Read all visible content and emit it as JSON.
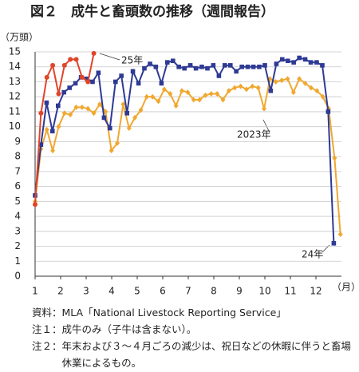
{
  "chart_data": {
    "type": "line",
    "title": "図２　成牛と畜頭数の推移（週間報告）",
    "y_label": "（万頭）",
    "x_label": "（月）",
    "xlim": [
      1,
      13
    ],
    "xticks": [
      1,
      2,
      3,
      4,
      5,
      6,
      7,
      8,
      9,
      10,
      11,
      12
    ],
    "ylim": [
      0,
      15
    ],
    "yticks": [
      0,
      1,
      2,
      3,
      4,
      5,
      6,
      7,
      8,
      9,
      10,
      11,
      12,
      13,
      14,
      15
    ],
    "grid": true,
    "series": [
      {
        "name": "2023年",
        "color": "#f0a830",
        "marker": "diamond",
        "x": [
          1.0,
          1.23,
          1.46,
          1.69,
          1.92,
          2.15,
          2.38,
          2.61,
          2.84,
          3.07,
          3.3,
          3.53,
          3.76,
          3.99,
          4.22,
          4.45,
          4.68,
          4.91,
          5.14,
          5.37,
          5.6,
          5.83,
          6.06,
          6.29,
          6.52,
          6.75,
          6.98,
          7.21,
          7.44,
          7.67,
          7.9,
          8.13,
          8.36,
          8.59,
          8.82,
          9.05,
          9.28,
          9.51,
          9.74,
          9.97,
          10.2,
          10.43,
          10.66,
          10.89,
          11.12,
          11.35,
          11.58,
          11.81,
          12.04,
          12.27,
          12.5,
          12.73,
          12.96
        ],
        "values": [
          5.0,
          8.5,
          9.8,
          8.4,
          10.0,
          10.9,
          10.8,
          11.3,
          11.3,
          11.2,
          10.9,
          11.5,
          11.0,
          8.4,
          8.9,
          11.5,
          9.9,
          10.6,
          11.1,
          12.0,
          12.0,
          11.7,
          12.5,
          12.2,
          11.4,
          12.4,
          12.3,
          11.8,
          11.8,
          12.1,
          12.2,
          12.2,
          11.8,
          12.4,
          12.6,
          12.7,
          12.5,
          12.7,
          12.6,
          11.2,
          13.2,
          13.0,
          13.1,
          13.2,
          12.3,
          13.2,
          12.9,
          12.6,
          12.4,
          12.0,
          11.2,
          7.9,
          2.8
        ]
      },
      {
        "name": "24年",
        "color": "#2e3a94",
        "marker": "square",
        "x": [
          1.0,
          1.23,
          1.45,
          1.68,
          1.9,
          2.13,
          2.35,
          2.58,
          2.8,
          3.03,
          3.25,
          3.48,
          3.7,
          3.93,
          4.15,
          4.38,
          4.6,
          4.83,
          5.05,
          5.28,
          5.5,
          5.73,
          5.95,
          6.18,
          6.4,
          6.63,
          6.85,
          7.08,
          7.3,
          7.53,
          7.75,
          7.98,
          8.2,
          8.43,
          8.65,
          8.88,
          9.1,
          9.33,
          9.55,
          9.78,
          10.0,
          10.23,
          10.45,
          10.68,
          10.9,
          11.13,
          11.35,
          11.58,
          11.8,
          12.03,
          12.25,
          12.48,
          12.7
        ],
        "values": [
          5.4,
          8.8,
          11.6,
          9.7,
          11.4,
          12.3,
          12.6,
          12.9,
          13.3,
          13.2,
          13.0,
          13.6,
          10.6,
          9.9,
          13.0,
          13.4,
          10.9,
          13.7,
          12.9,
          13.9,
          14.2,
          14.0,
          12.9,
          14.3,
          14.4,
          14.0,
          13.9,
          14.1,
          13.9,
          14.0,
          13.9,
          14.1,
          13.4,
          14.1,
          14.1,
          13.7,
          14.0,
          14.0,
          14.0,
          14.0,
          14.1,
          12.4,
          14.2,
          14.5,
          14.4,
          14.3,
          14.6,
          14.5,
          14.3,
          14.3,
          14.1,
          11.0,
          2.2
        ]
      },
      {
        "name": "25年",
        "color": "#e0452a",
        "marker": "circle",
        "x": [
          1.0,
          1.23,
          1.46,
          1.69,
          1.92,
          2.15,
          2.38,
          2.61,
          2.84,
          3.07,
          3.3
        ],
        "values": [
          4.8,
          10.9,
          13.3,
          14.1,
          12.2,
          14.1,
          14.5,
          14.5,
          13.3,
          13.0,
          14.9
        ]
      }
    ]
  },
  "notes": [
    "資料：MLA「National Livestock Reporting Service」",
    "注１：成牛のみ（子牛は含まない）。",
    "注２：年末および３～４月ごろの減少は、祝日などの休暇に伴うと畜場休業によるもの。"
  ]
}
